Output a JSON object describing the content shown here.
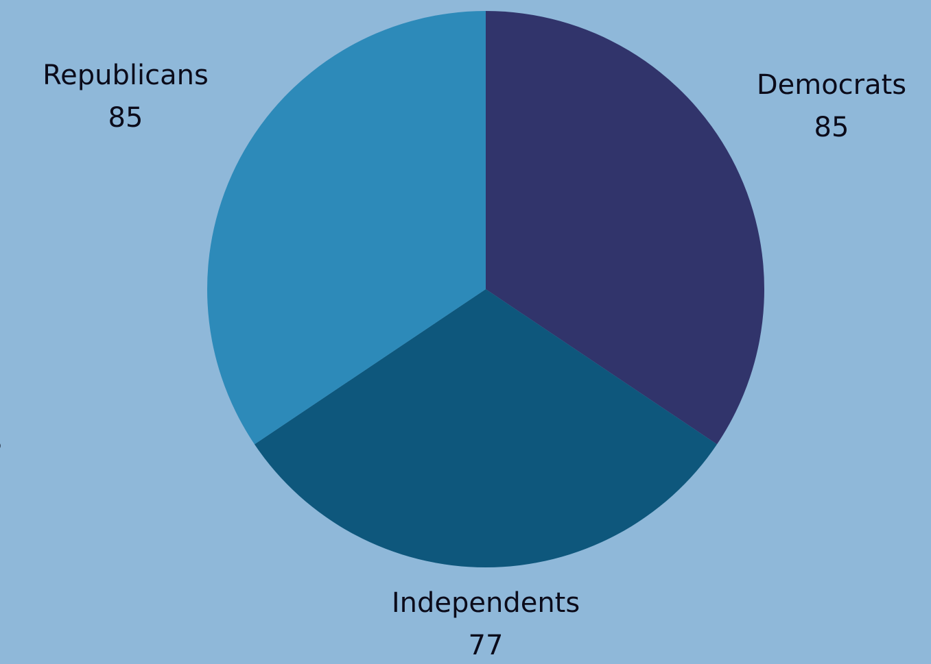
{
  "chart_data": {
    "type": "pie",
    "title": "",
    "slices": [
      {
        "label": "Democrats",
        "value": 85,
        "color": "#31346b"
      },
      {
        "label": "Independents",
        "value": 77,
        "color": "#0e577c"
      },
      {
        "label": "Republicans",
        "value": 85,
        "color": "#2d8ab9"
      }
    ],
    "data_labels": "outside, category name above value",
    "legend": "none"
  },
  "colors": {
    "background": "#8fb8d9",
    "label_text": "#0b0b1a"
  },
  "edge_fragment_text": "s"
}
